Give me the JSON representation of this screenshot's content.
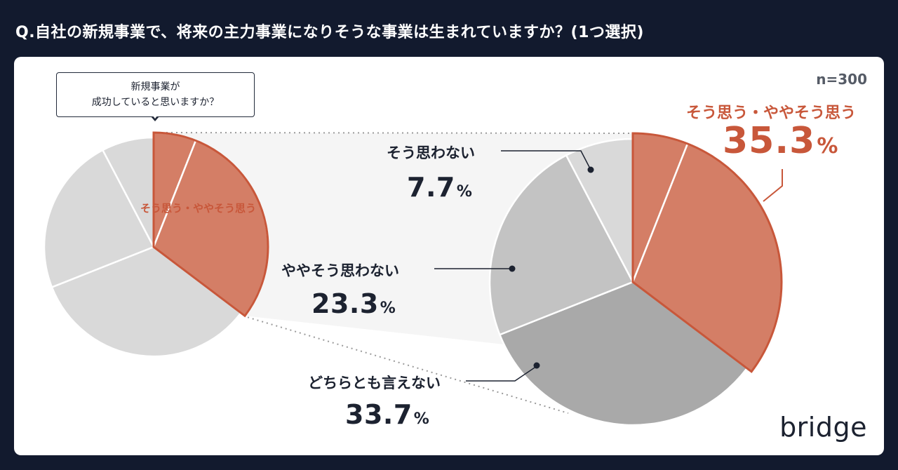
{
  "question": "Q.自社の新規事業で、将来の主力事業になりそうな事業は生まれていますか？(1つ選択)",
  "sample_size": "n=300",
  "callout": {
    "line1": "新規事業が",
    "line2": "成功していると思いますか？"
  },
  "small_pie_label": "そう思う・ややそう思う",
  "brand": "bridge",
  "colors": {
    "background": "#121a2e",
    "highlight": "#c8573a",
    "highlight_fill": "#d47e66",
    "gray_dark": "#a9a9a9",
    "gray_mid": "#c3c3c3",
    "gray_light": "#d9d9d9"
  },
  "chart_data": {
    "type": "pie",
    "title": "新規事業が成功していると思いますか？",
    "segments": [
      {
        "name": "そう思う",
        "value": 6.0,
        "group": "positive"
      },
      {
        "name": "ややそう思う",
        "value": 29.3,
        "group": "positive"
      },
      {
        "name": "どちらとも言えない",
        "value": 33.7,
        "group": "neutral"
      },
      {
        "name": "ややそう思わない",
        "value": 23.3,
        "group": "negative_mild"
      },
      {
        "name": "そう思わない",
        "value": 7.7,
        "group": "negative"
      }
    ],
    "labels": {
      "positive": {
        "name": "そう思う・ややそう思う",
        "value": "35.3",
        "unit": "%"
      },
      "negative": {
        "name": "そう思わない",
        "value": "7.7",
        "unit": "%"
      },
      "negative_mild": {
        "name": "ややそう思わない",
        "value": "23.3",
        "unit": "%"
      },
      "neutral": {
        "name": "どちらとも言えない",
        "value": "33.7",
        "unit": "%"
      }
    }
  }
}
